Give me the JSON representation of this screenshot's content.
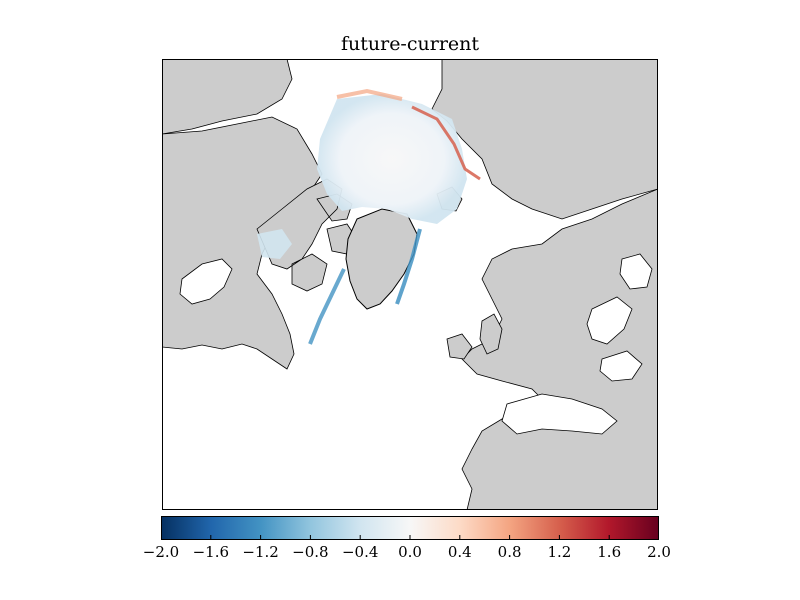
{
  "title": "future-current",
  "colors": {
    "land": "#cccccc",
    "ocean": "#ffffff",
    "coastline": "#000000",
    "colormap": [
      "#053061",
      "#2166ac",
      "#4393c3",
      "#92c5de",
      "#d1e5f0",
      "#f7f7f7",
      "#fddbc7",
      "#f4a582",
      "#d6604d",
      "#b2182b",
      "#67001f"
    ]
  },
  "colorbar": {
    "range": [
      -2.0,
      2.0
    ],
    "colormap_name": "diverging-blue-white-red",
    "ticks": [
      "−2.0",
      "−1.6",
      "−1.2",
      "−0.8",
      "−0.4",
      "0.0",
      "0.4",
      "0.8",
      "1.2",
      "1.6",
      "2.0"
    ]
  }
}
